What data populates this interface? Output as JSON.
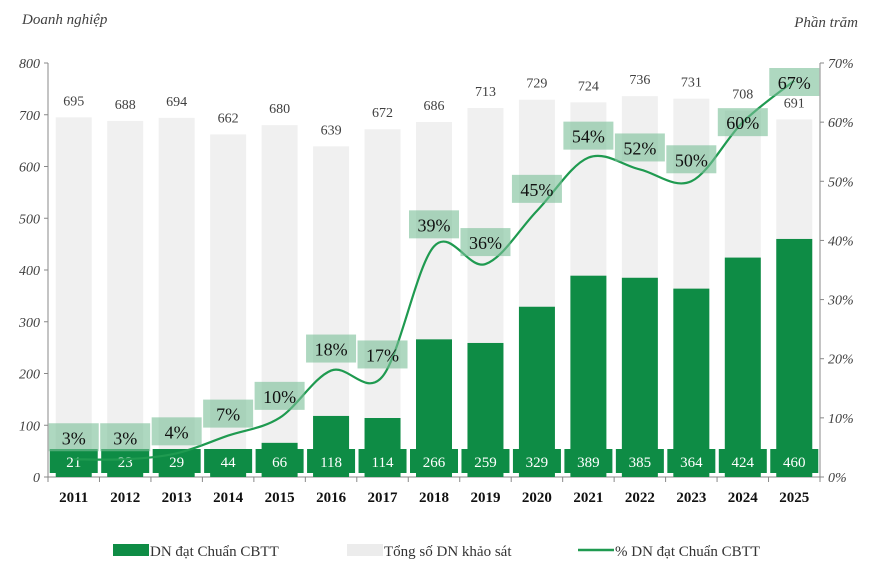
{
  "chart_data": {
    "type": "bar+line",
    "ylabel_left": "Doanh nghiệp",
    "ylabel_right": "Phần trăm",
    "ylim_left": [
      0,
      800
    ],
    "ylim_right": [
      0,
      70
    ],
    "yticks_left": [
      "0",
      "100",
      "200",
      "300",
      "400",
      "500",
      "600",
      "700",
      "800"
    ],
    "yticks_right": [
      "0%",
      "10%",
      "20%",
      "30%",
      "40%",
      "50%",
      "60%",
      "70%"
    ],
    "grid": false,
    "legend_position": "bottom",
    "categories": [
      "2011",
      "2012",
      "2013",
      "2014",
      "2015",
      "2016",
      "2017",
      "2018",
      "2019",
      "2020",
      "2021",
      "2022",
      "2023",
      "2024",
      "2025"
    ],
    "series": [
      {
        "name": "DN đạt Chuẩn CBTT",
        "type": "bar",
        "axis": "left",
        "color": "#0e8c45",
        "values": [
          21,
          23,
          29,
          44,
          66,
          118,
          114,
          266,
          259,
          329,
          389,
          385,
          364,
          424,
          460
        ]
      },
      {
        "name": "Tổng số DN khảo sát",
        "type": "bar",
        "axis": "left",
        "color": "#f0f0f0",
        "values": [
          695,
          688,
          694,
          662,
          680,
          639,
          672,
          686,
          713,
          729,
          724,
          736,
          731,
          708,
          691
        ]
      },
      {
        "name": "% DN đạt Chuẩn CBTT",
        "type": "line",
        "axis": "right",
        "color": "#1f9a50",
        "values": [
          3,
          3,
          4,
          7,
          10,
          18,
          17,
          39,
          36,
          45,
          54,
          52,
          50,
          60,
          67
        ]
      }
    ]
  }
}
